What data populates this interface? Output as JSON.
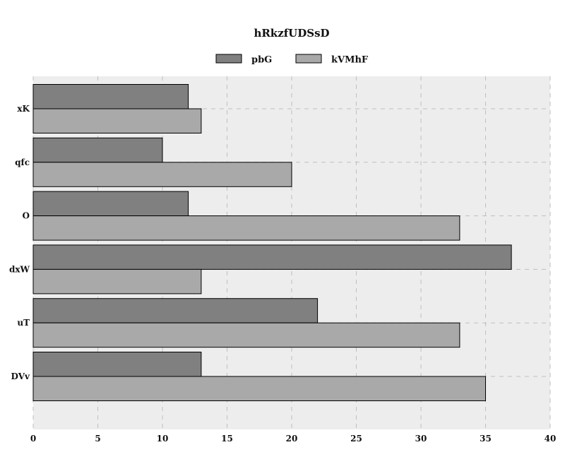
{
  "chart_data": {
    "type": "bar",
    "orientation": "horizontal",
    "title": "hRkzfUDSsD",
    "xlabel": "",
    "ylabel": "",
    "categories": [
      "xK",
      "qfc",
      "O",
      "dxW",
      "uT",
      "DVv"
    ],
    "series": [
      {
        "name": "pbG",
        "color": "#808080",
        "values": [
          12,
          10,
          12,
          37,
          22,
          13
        ]
      },
      {
        "name": "kVMhF",
        "color": "#a9a9a9",
        "values": [
          13,
          20,
          33,
          13,
          33,
          35
        ]
      }
    ],
    "xlim": [
      0,
      40
    ],
    "xticks": [
      0,
      5,
      10,
      15,
      20,
      25,
      30,
      35,
      40
    ],
    "grid": true,
    "legend_position": "top-center",
    "plot_background": "#ededed"
  }
}
